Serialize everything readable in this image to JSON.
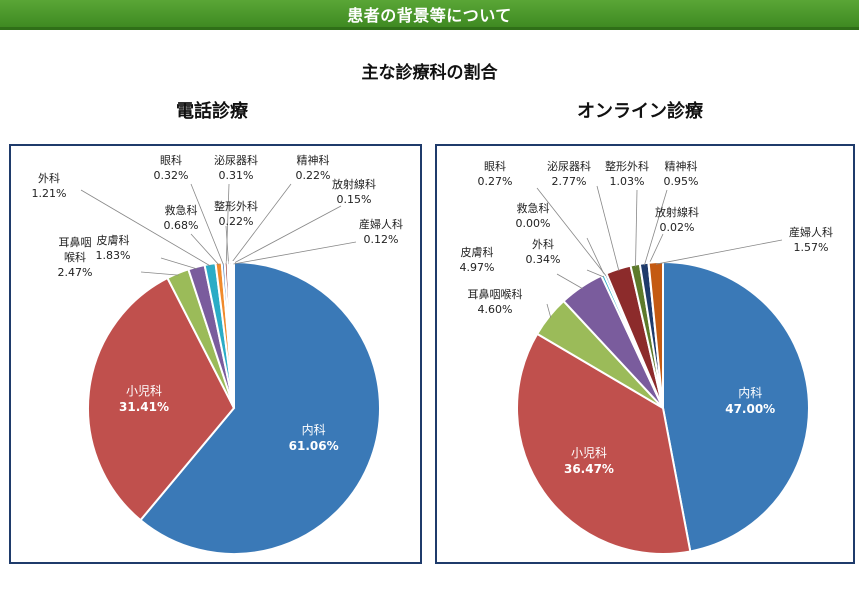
{
  "banner": {
    "title": "患者の背景等について"
  },
  "page": {
    "title": "主な診療科の割合"
  },
  "chart_data": [
    {
      "type": "pie",
      "title": "電話診療",
      "slices": [
        {
          "label": "内科",
          "value": 61.06,
          "value_label": "61.06%",
          "color": "#3a79b7"
        },
        {
          "label": "小児科",
          "value": 31.41,
          "value_label": "31.41%",
          "color": "#c0504d"
        },
        {
          "label": "耳鼻咽喉科",
          "value": 2.47,
          "value_label": "2.47%",
          "color": "#9bbb59"
        },
        {
          "label": "皮膚科",
          "value": 1.83,
          "value_label": "1.83%",
          "color": "#7a5c9d"
        },
        {
          "label": "外科",
          "value": 1.21,
          "value_label": "1.21%",
          "color": "#2bacc6"
        },
        {
          "label": "救急科",
          "value": 0.68,
          "value_label": "0.68%",
          "color": "#f08a2c"
        },
        {
          "label": "眼科",
          "value": 0.32,
          "value_label": "0.32%",
          "color": "#4f81bd"
        },
        {
          "label": "泌尿器科",
          "value": 0.31,
          "value_label": "0.31%",
          "color": "#8c2b2b"
        },
        {
          "label": "整形外科",
          "value": 0.22,
          "value_label": "0.22%",
          "color": "#5d7a2b"
        },
        {
          "label": "精神科",
          "value": 0.22,
          "value_label": "0.22%",
          "color": "#4b2f6b"
        },
        {
          "label": "放射線科",
          "value": 0.15,
          "value_label": "0.15%",
          "color": "#1b7a8c"
        },
        {
          "label": "産婦人科",
          "value": 0.12,
          "value_label": "0.12%",
          "color": "#c45a12"
        }
      ]
    },
    {
      "type": "pie",
      "title": "オンライン診療",
      "slices": [
        {
          "label": "内科",
          "value": 47.0,
          "value_label": "47.00%",
          "color": "#3a79b7"
        },
        {
          "label": "小児科",
          "value": 36.47,
          "value_label": "36.47%",
          "color": "#c0504d"
        },
        {
          "label": "耳鼻咽喉科",
          "value": 4.6,
          "value_label": "4.60%",
          "color": "#9bbb59"
        },
        {
          "label": "皮膚科",
          "value": 4.97,
          "value_label": "4.97%",
          "color": "#7a5c9d"
        },
        {
          "label": "外科",
          "value": 0.34,
          "value_label": "0.34%",
          "color": "#2bacc6"
        },
        {
          "label": "救急科",
          "value": 0.0,
          "value_label": "0.00%",
          "color": "#f08a2c"
        },
        {
          "label": "眼科",
          "value": 0.27,
          "value_label": "0.27%",
          "color": "#4f81bd"
        },
        {
          "label": "泌尿器科",
          "value": 2.77,
          "value_label": "2.77%",
          "color": "#8c2b2b"
        },
        {
          "label": "整形外科",
          "value": 1.03,
          "value_label": "1.03%",
          "color": "#5d7a2b"
        },
        {
          "label": "精神科",
          "value": 0.95,
          "value_label": "0.95%",
          "color": "#1f3b6b"
        },
        {
          "label": "放射線科",
          "value": 0.02,
          "value_label": "0.02%",
          "color": "#1b7a8c"
        },
        {
          "label": "産婦人科",
          "value": 1.57,
          "value_label": "1.57%",
          "color": "#c45a12"
        }
      ]
    }
  ]
}
